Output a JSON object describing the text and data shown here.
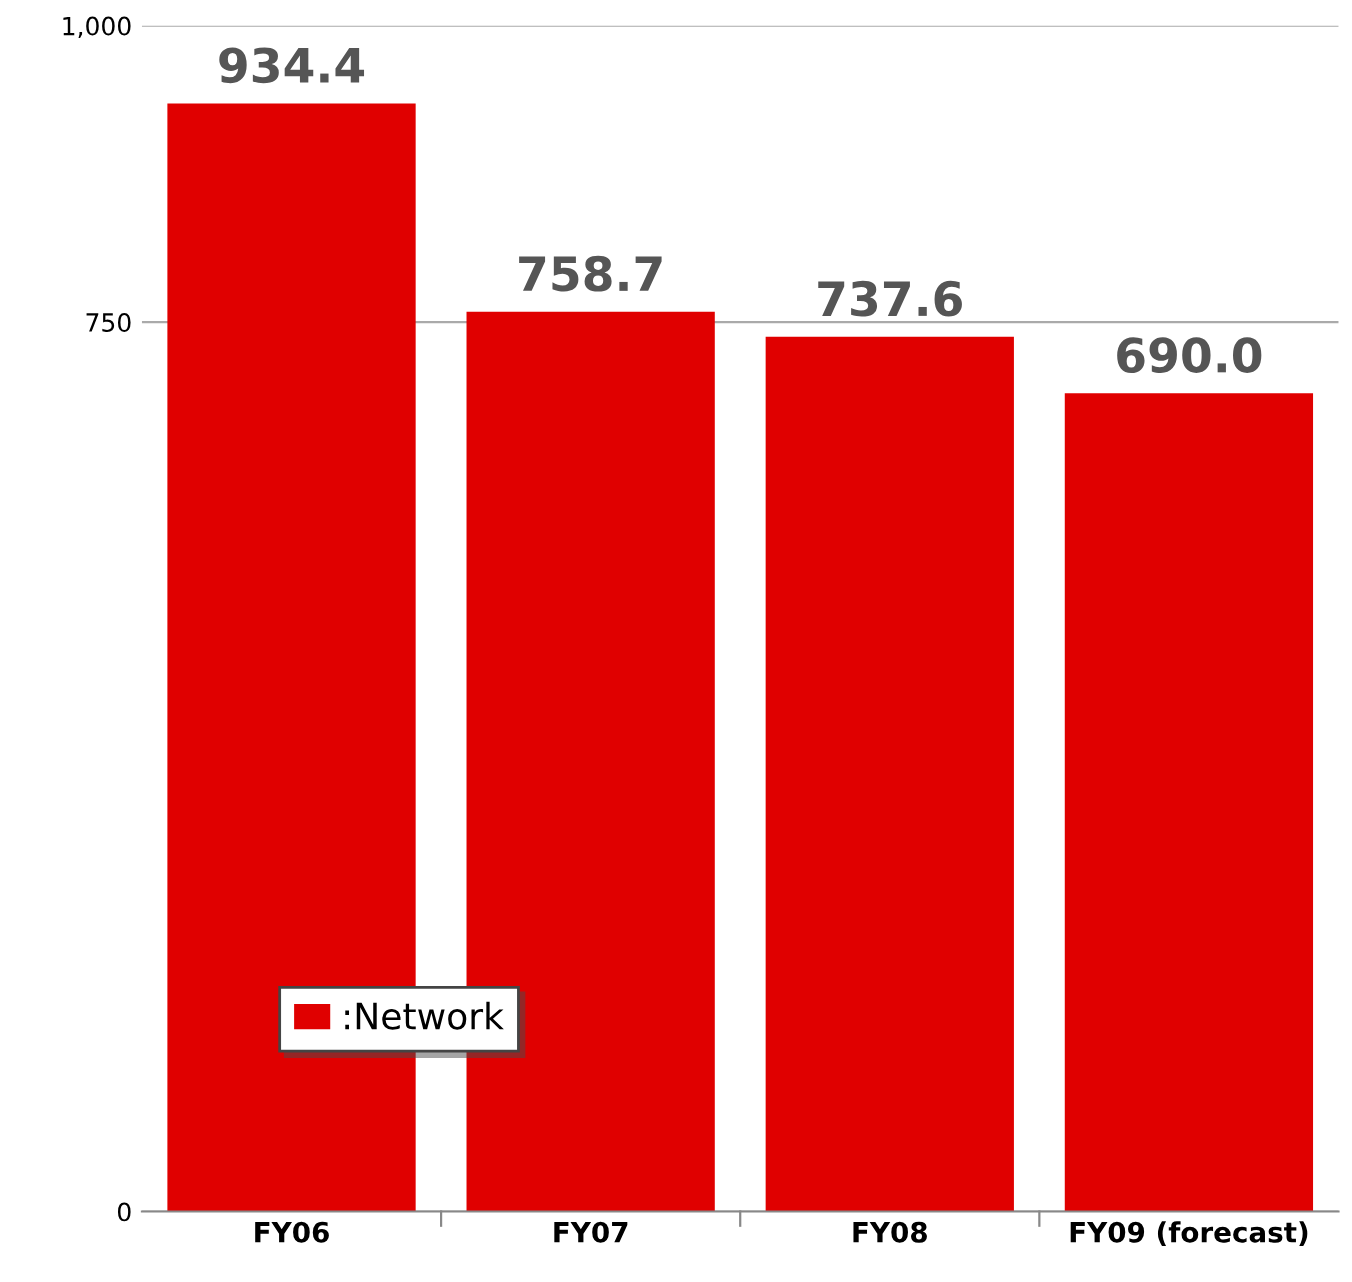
{
  "chart_data": {
    "type": "bar",
    "categories": [
      "FY06",
      "FY07",
      "FY08",
      "FY09 (forecast)"
    ],
    "series": [
      {
        "name": ":Network",
        "color": "#e00000",
        "values": [
          934.4,
          758.7,
          737.6,
          690.0
        ],
        "value_labels": [
          "934.4",
          "758.7",
          "737.6",
          "690.0"
        ]
      }
    ],
    "ylim": [
      0,
      1000
    ],
    "yticks": [
      0,
      750,
      {
        "value": 1000,
        "label": "1,000"
      }
    ],
    "grid": "y",
    "legend": "bottom left"
  }
}
